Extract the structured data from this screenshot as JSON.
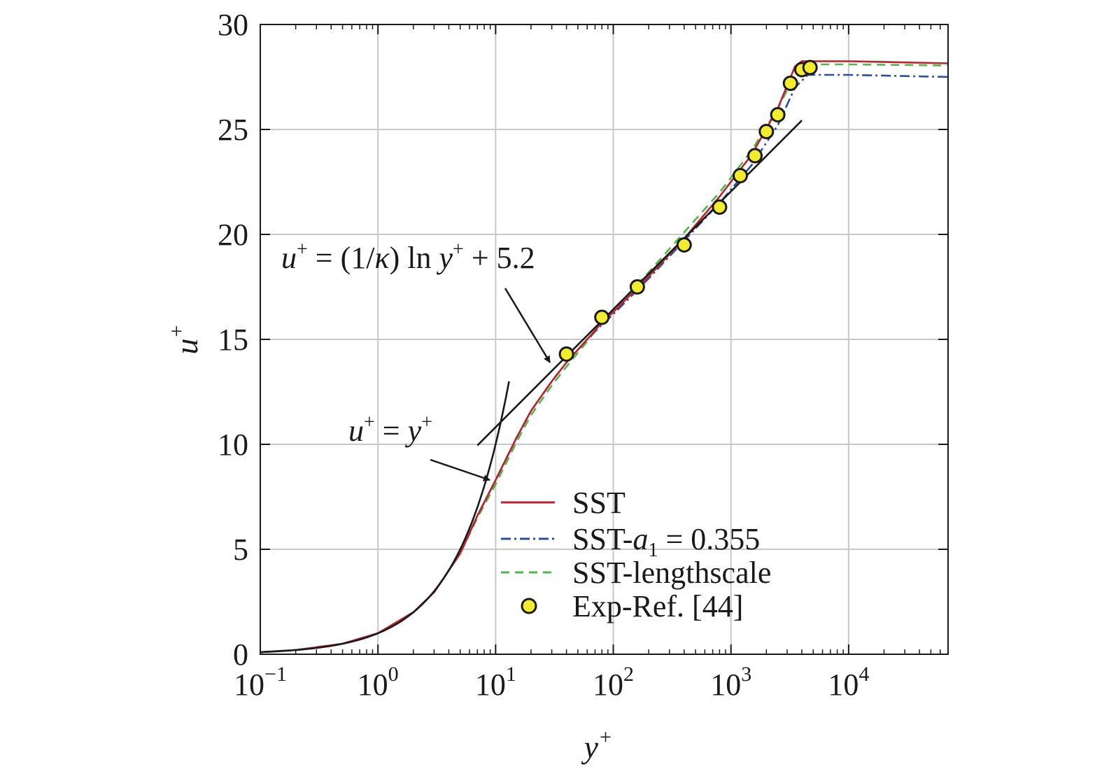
{
  "chart_data": {
    "type": "line",
    "xscale": "log",
    "xlim": [
      0.1,
      70000
    ],
    "ylim": [
      0,
      30
    ],
    "grid": true,
    "xlabel": "y+",
    "ylabel": "u+",
    "xticks": [
      {
        "value": 0.1,
        "base": "10",
        "exp": "−1"
      },
      {
        "value": 1,
        "base": "10",
        "exp": "0"
      },
      {
        "value": 10,
        "base": "10",
        "exp": "1"
      },
      {
        "value": 100,
        "base": "10",
        "exp": "2"
      },
      {
        "value": 1000,
        "base": "10",
        "exp": "3"
      },
      {
        "value": 10000,
        "base": "10",
        "exp": "4"
      }
    ],
    "yticks": [
      0,
      5,
      10,
      15,
      20,
      25,
      30
    ],
    "legend_position": "bottom-right",
    "series": [
      {
        "name": "SST",
        "color": "#c0202a",
        "style": "solid",
        "points": [
          [
            0.1,
            0.1
          ],
          [
            0.2,
            0.2
          ],
          [
            0.5,
            0.5
          ],
          [
            1,
            1
          ],
          [
            2,
            2
          ],
          [
            3,
            2.95
          ],
          [
            5,
            4.8
          ],
          [
            7,
            6.6
          ],
          [
            10,
            8.3
          ],
          [
            15,
            10.3
          ],
          [
            20,
            11.6
          ],
          [
            30,
            13.0
          ],
          [
            40,
            13.9
          ],
          [
            60,
            15.0
          ],
          [
            80,
            15.8
          ],
          [
            100,
            16.3
          ],
          [
            200,
            18.0
          ],
          [
            400,
            19.8
          ],
          [
            800,
            21.8
          ],
          [
            1500,
            23.8
          ],
          [
            2500,
            26.0
          ],
          [
            3500,
            28.0
          ],
          [
            4000,
            28.25
          ],
          [
            10000,
            28.25
          ],
          [
            70000,
            28.15
          ]
        ]
      },
      {
        "name": "SST-a1 = 0.355",
        "color": "#2a4fa0",
        "style": "dashdot",
        "points": [
          [
            0.1,
            0.1
          ],
          [
            0.2,
            0.2
          ],
          [
            0.5,
            0.5
          ],
          [
            1,
            1
          ],
          [
            2,
            2
          ],
          [
            3,
            2.95
          ],
          [
            5,
            4.8
          ],
          [
            7,
            6.6
          ],
          [
            10,
            8.3
          ],
          [
            15,
            10.3
          ],
          [
            20,
            11.6
          ],
          [
            30,
            13.0
          ],
          [
            40,
            13.9
          ],
          [
            60,
            15.0
          ],
          [
            80,
            15.7
          ],
          [
            100,
            16.2
          ],
          [
            200,
            17.9
          ],
          [
            400,
            19.7
          ],
          [
            800,
            21.5
          ],
          [
            1500,
            23.3
          ],
          [
            2500,
            25.2
          ],
          [
            3500,
            27.0
          ],
          [
            4500,
            27.6
          ],
          [
            10000,
            27.6
          ],
          [
            70000,
            27.5
          ]
        ]
      },
      {
        "name": "SST-lengthscale",
        "color": "#4cb84c",
        "style": "dashed",
        "points": [
          [
            0.1,
            0.1
          ],
          [
            0.2,
            0.2
          ],
          [
            0.5,
            0.5
          ],
          [
            1,
            1
          ],
          [
            2,
            2
          ],
          [
            3,
            2.95
          ],
          [
            5,
            4.8
          ],
          [
            7,
            6.5
          ],
          [
            10,
            8.1
          ],
          [
            15,
            10.1
          ],
          [
            20,
            11.4
          ],
          [
            30,
            12.8
          ],
          [
            40,
            13.7
          ],
          [
            60,
            14.9
          ],
          [
            80,
            15.8
          ],
          [
            100,
            16.4
          ],
          [
            200,
            18.2
          ],
          [
            400,
            20.1
          ],
          [
            800,
            22.0
          ],
          [
            1500,
            24.0
          ],
          [
            2500,
            26.0
          ],
          [
            3500,
            27.6
          ],
          [
            4500,
            28.1
          ],
          [
            10000,
            28.1
          ],
          [
            70000,
            28.05
          ]
        ]
      }
    ],
    "experimental": {
      "name": "Exp-Ref. [44]",
      "color": "#f2ec2e",
      "points": [
        [
          40,
          14.3
        ],
        [
          80,
          16.05
        ],
        [
          160,
          17.5
        ],
        [
          400,
          19.5
        ],
        [
          800,
          21.3
        ],
        [
          1200,
          22.8
        ],
        [
          1600,
          23.75
        ],
        [
          2000,
          24.9
        ],
        [
          2500,
          25.7
        ],
        [
          3200,
          27.2
        ],
        [
          4000,
          27.85
        ],
        [
          4700,
          27.95
        ]
      ]
    },
    "reference_lines": [
      {
        "id": "viscous",
        "label_lhs": "u",
        "label_mid": " = ",
        "label_rhs": "y",
        "sup": "+",
        "x_range": [
          0.1,
          13
        ]
      },
      {
        "id": "loglaw",
        "kappa": 0.41,
        "intercept": 5.2,
        "x_range": [
          7,
          4000
        ],
        "label_lhs": "u",
        "label_eq": " = (1/",
        "label_kappa": "κ",
        "label_ln": ") ln ",
        "label_y": "y",
        "sup": "+",
        "label_tail": " + 5.2"
      }
    ]
  }
}
